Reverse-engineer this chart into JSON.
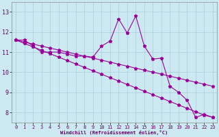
{
  "x_values": [
    0,
    1,
    2,
    3,
    4,
    5,
    6,
    7,
    8,
    9,
    10,
    11,
    12,
    13,
    14,
    15,
    16,
    17,
    18,
    19,
    20,
    21,
    22,
    23
  ],
  "line_main": [
    11.6,
    11.6,
    11.3,
    11.0,
    11.0,
    11.0,
    10.9,
    10.8,
    10.8,
    10.75,
    11.3,
    11.55,
    12.65,
    11.95,
    12.8,
    11.3,
    10.65,
    10.7,
    9.3,
    9.0,
    8.6,
    7.75,
    7.9,
    7.75
  ],
  "line_straight1": [
    11.6,
    11.43,
    11.26,
    11.09,
    10.92,
    10.75,
    10.58,
    10.41,
    10.24,
    10.07,
    9.9,
    9.73,
    9.56,
    9.39,
    9.22,
    9.05,
    8.88,
    8.71,
    8.54,
    8.37,
    8.2,
    8.03,
    7.86,
    7.75
  ],
  "line_straight2": [
    11.6,
    11.5,
    11.4,
    11.3,
    11.2,
    11.1,
    11.0,
    10.9,
    10.8,
    10.7,
    10.6,
    10.5,
    10.4,
    10.3,
    10.2,
    10.1,
    10.0,
    9.9,
    9.8,
    9.7,
    9.6,
    9.5,
    9.4,
    9.3
  ],
  "color": "#990099",
  "bg_color": "#cce8f0",
  "grid_color": "#aaccdd",
  "xlabel": "Windchill (Refroidissement éolien,°C)",
  "xlim": [
    -0.5,
    23.5
  ],
  "ylim": [
    7.5,
    13.5
  ],
  "yticks": [
    8,
    9,
    10,
    11,
    12,
    13
  ],
  "xticks": [
    0,
    1,
    2,
    3,
    4,
    5,
    6,
    7,
    8,
    9,
    10,
    11,
    12,
    13,
    14,
    15,
    16,
    17,
    18,
    19,
    20,
    21,
    22,
    23
  ],
  "marker": "*",
  "markersize": 3.5,
  "linewidth": 0.8
}
